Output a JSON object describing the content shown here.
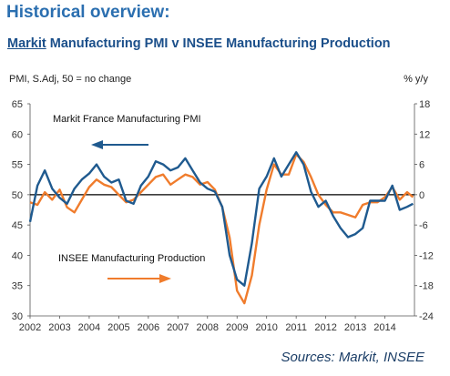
{
  "header": {
    "title": "Historical overview:",
    "subtitle_brand": "Markit",
    "subtitle_rest": " Manufacturing PMI v INSEE Manufacturing Production"
  },
  "footer": {
    "source": "Sources: Markit, INSEE"
  },
  "colors": {
    "pmi": "#1f5a8f",
    "production": "#f07c2c",
    "title": "#2b6fb0"
  },
  "chart_data": {
    "type": "line",
    "left_axis_label": "PMI, S.Adj, 50 = no change",
    "right_axis_label": "% y/y",
    "left_ylim": [
      30,
      65
    ],
    "left_ticks": [
      30,
      35,
      40,
      45,
      50,
      55,
      60,
      65
    ],
    "right_ylim": [
      -24,
      18
    ],
    "right_ticks": [
      -24,
      -18,
      -12,
      -6,
      0,
      6,
      12,
      18
    ],
    "xlim": [
      2002,
      2015
    ],
    "x_ticks": [
      2002,
      2003,
      2004,
      2005,
      2006,
      2007,
      2008,
      2009,
      2010,
      2011,
      2012,
      2013,
      2014
    ],
    "grid": false,
    "annotations": [
      {
        "text": "Markit France Manufacturing PMI",
        "arrow": "left",
        "series": "pmi"
      },
      {
        "text": "INSEE Manufacturing Production",
        "arrow": "right",
        "series": "production"
      }
    ],
    "series": [
      {
        "name": "Markit France Manufacturing PMI",
        "key": "pmi",
        "axis": "left",
        "x": [
          2002.0,
          2002.25,
          2002.5,
          2002.75,
          2003.0,
          2003.25,
          2003.5,
          2003.75,
          2004.0,
          2004.25,
          2004.5,
          2004.75,
          2005.0,
          2005.25,
          2005.5,
          2005.75,
          2006.0,
          2006.25,
          2006.5,
          2006.75,
          2007.0,
          2007.25,
          2007.5,
          2007.75,
          2008.0,
          2008.25,
          2008.5,
          2008.75,
          2009.0,
          2009.25,
          2009.5,
          2009.75,
          2010.0,
          2010.25,
          2010.5,
          2010.75,
          2011.0,
          2011.25,
          2011.5,
          2011.75,
          2012.0,
          2012.25,
          2012.5,
          2012.75,
          2013.0,
          2013.25,
          2013.5,
          2013.75,
          2014.0,
          2014.25,
          2014.5,
          2014.75,
          2014.95
        ],
        "values": [
          45.5,
          51.5,
          54.0,
          51.0,
          49.5,
          48.5,
          51.0,
          52.5,
          53.5,
          55.0,
          53.0,
          52.0,
          52.5,
          49.0,
          48.5,
          51.5,
          53.0,
          55.5,
          55.0,
          54.0,
          54.5,
          56.0,
          54.0,
          52.0,
          51.0,
          50.5,
          48.0,
          40.0,
          36.0,
          35.0,
          42.0,
          51.0,
          53.0,
          56.0,
          53.0,
          55.0,
          57.0,
          55.0,
          50.5,
          48.0,
          49.0,
          46.5,
          44.5,
          43.0,
          43.5,
          44.5,
          49.0,
          49.0,
          49.0,
          51.5,
          47.5,
          48.0,
          48.5
        ]
      },
      {
        "name": "INSEE Manufacturing Production",
        "key": "production",
        "axis": "right",
        "x": [
          2002.0,
          2002.25,
          2002.5,
          2002.75,
          2003.0,
          2003.25,
          2003.5,
          2003.75,
          2004.0,
          2004.25,
          2004.5,
          2004.75,
          2005.0,
          2005.25,
          2005.5,
          2005.75,
          2006.0,
          2006.25,
          2006.5,
          2006.75,
          2007.0,
          2007.25,
          2007.5,
          2007.75,
          2008.0,
          2008.25,
          2008.5,
          2008.75,
          2009.0,
          2009.25,
          2009.5,
          2009.75,
          2010.0,
          2010.25,
          2010.5,
          2010.75,
          2011.0,
          2011.25,
          2011.5,
          2011.75,
          2012.0,
          2012.25,
          2012.5,
          2012.75,
          2013.0,
          2013.25,
          2013.5,
          2013.75,
          2014.0,
          2014.25,
          2014.5,
          2014.75,
          2014.95
        ],
        "values": [
          -1.5,
          -2.0,
          0.5,
          -1.0,
          1.0,
          -2.5,
          -3.5,
          -1.0,
          1.5,
          3.0,
          2.0,
          1.5,
          0.0,
          -1.5,
          -1.0,
          0.5,
          2.0,
          3.5,
          4.0,
          2.0,
          3.0,
          4.0,
          3.5,
          2.0,
          2.5,
          1.0,
          -2.5,
          -8.5,
          -19.0,
          -21.5,
          -16.0,
          -6.0,
          1.0,
          6.0,
          4.0,
          4.0,
          8.0,
          6.5,
          3.5,
          0.0,
          -2.0,
          -3.5,
          -3.5,
          -4.0,
          -4.5,
          -2.0,
          -1.5,
          -1.5,
          -0.5,
          1.5,
          -1.0,
          0.5,
          -0.5
        ]
      }
    ]
  }
}
